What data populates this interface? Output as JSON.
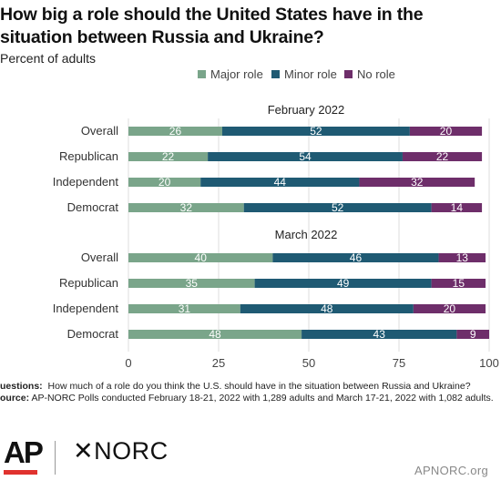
{
  "header": {
    "title": "How big a role should the United States have in the situation between Russia and Ukraine?",
    "subtitle": "Percent of adults"
  },
  "notes": {
    "questions_label": "uestions:",
    "questions_text": "How much of a role do you think the U.S. should have in the situation between Russia and Ukraine?",
    "source_label": "ource:",
    "source_text": "AP-NORC Polls conducted February 18-21, 2022 with 1,289 adults and March 17-21, 2022 with 1,082 adults."
  },
  "branding": {
    "ap_logo": "AP",
    "norc_logo": "✕NORC",
    "site": "APNORC.org"
  },
  "chart_data": {
    "type": "bar",
    "orientation": "horizontal",
    "stacked": true,
    "legend": {
      "placement": "top",
      "entries": [
        "Major role",
        "Minor role",
        "No role"
      ]
    },
    "colors": {
      "Major role": "#7aa58a",
      "Minor role": "#1f5a73",
      "No role": "#6e2e6a"
    },
    "xlim": [
      0,
      100
    ],
    "xticks": [
      "0",
      "25",
      "50",
      "75",
      "100"
    ],
    "grid": true,
    "panels": [
      {
        "title": "February 2022",
        "categories": [
          "Overall",
          "Republican",
          "Independent",
          "Democrat"
        ],
        "series": [
          {
            "name": "Major role",
            "values": [
              26,
              22,
              20,
              32
            ]
          },
          {
            "name": "Minor role",
            "values": [
              52,
              54,
              44,
              52
            ]
          },
          {
            "name": "No role",
            "values": [
              20,
              22,
              32,
              14
            ]
          }
        ]
      },
      {
        "title": "March 2022",
        "categories": [
          "Overall",
          "Republican",
          "Independent",
          "Democrat"
        ],
        "series": [
          {
            "name": "Major role",
            "values": [
              40,
              35,
              31,
              48
            ]
          },
          {
            "name": "Minor role",
            "values": [
              46,
              49,
              48,
              43
            ]
          },
          {
            "name": "No role",
            "values": [
              13,
              15,
              20,
              9
            ]
          }
        ]
      }
    ]
  }
}
